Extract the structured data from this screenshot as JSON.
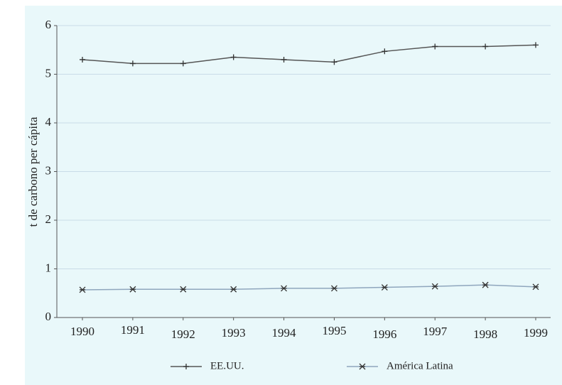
{
  "chart_data": {
    "type": "line",
    "ylabel": "t de carbono per cápita",
    "categories": [
      "1990",
      "1991",
      "1992",
      "1993",
      "1994",
      "1995",
      "1996",
      "1997",
      "1998",
      "1999"
    ],
    "series": [
      {
        "name": "EE.UU.",
        "color": "#555555",
        "marker": "plus",
        "values": [
          5.3,
          5.22,
          5.22,
          5.35,
          5.3,
          5.25,
          5.47,
          5.57,
          5.57,
          5.6
        ]
      },
      {
        "name": "América Latina",
        "color": "#8fa6bd",
        "marker": "x",
        "values": [
          0.57,
          0.58,
          0.58,
          0.58,
          0.6,
          0.6,
          0.62,
          0.64,
          0.67,
          0.63
        ]
      }
    ],
    "ylim": [
      0,
      6
    ],
    "yticks": [
      0,
      1,
      2,
      3,
      4,
      5,
      6
    ],
    "grid": true,
    "legend": "bottom"
  }
}
